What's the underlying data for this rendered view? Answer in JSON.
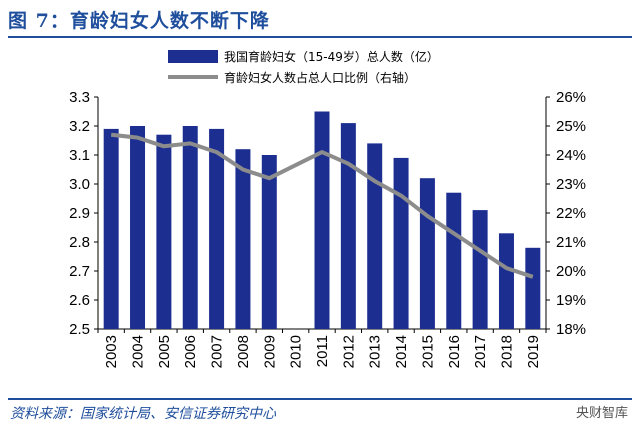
{
  "figure": {
    "title": "图 7：育龄妇女人数不断下降",
    "source": "资料来源：国家统计局、安信证券研究中心",
    "watermark": "央财智库"
  },
  "colors": {
    "bar": "#1c2f91",
    "line": "#8c8c8c",
    "accent": "#1f4e9c"
  },
  "chart_data": {
    "type": "bar",
    "categories": [
      "2003",
      "2004",
      "2005",
      "2006",
      "2007",
      "2008",
      "2009",
      "2010",
      "2011",
      "2012",
      "2013",
      "2014",
      "2015",
      "2016",
      "2017",
      "2018",
      "2019"
    ],
    "series": [
      {
        "name": "我国育龄妇女（15-49岁）总人数（亿）",
        "type": "bar",
        "axis": "left",
        "values": [
          3.19,
          3.2,
          3.17,
          3.2,
          3.19,
          3.12,
          3.1,
          null,
          3.25,
          3.21,
          3.14,
          3.09,
          3.02,
          2.97,
          2.91,
          2.83,
          2.78
        ]
      },
      {
        "name": "育龄妇女人数占总人口比例（右轴）",
        "type": "line",
        "axis": "right",
        "values": [
          24.7,
          24.6,
          24.3,
          24.4,
          24.1,
          23.5,
          23.2,
          null,
          24.1,
          23.7,
          23.1,
          22.6,
          21.9,
          21.3,
          20.7,
          20.1,
          19.8
        ]
      }
    ],
    "y_left": {
      "min": 2.5,
      "max": 3.3,
      "ticks": [
        "2.5",
        "2.6",
        "2.7",
        "2.8",
        "2.9",
        "3.0",
        "3.1",
        "3.2",
        "3.3"
      ]
    },
    "y_right": {
      "min": 18,
      "max": 26,
      "ticks": [
        "18%",
        "19%",
        "20%",
        "21%",
        "22%",
        "23%",
        "24%",
        "25%",
        "26%"
      ]
    },
    "grid": false,
    "legend_position": "top"
  }
}
